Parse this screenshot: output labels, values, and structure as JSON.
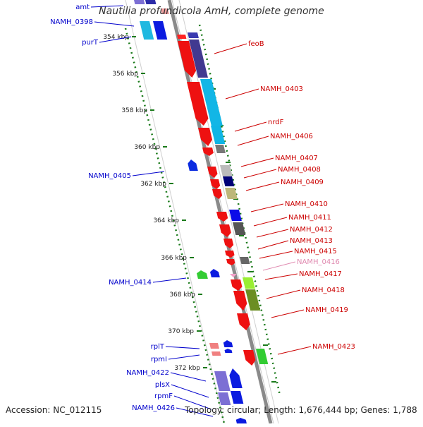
{
  "title": "Nautilia profundicola AmH, complete genome",
  "footer": {
    "accession": "Accession: NC_012115",
    "summary": "Topology: circular; Length: 1,676,444 bp; Genes: 1,788"
  },
  "colors": {
    "backbone": "#8a8a8a",
    "tick": "#1a7a1a",
    "label_plus": "#0000cc",
    "label_minus": "#cc0000",
    "label_minus_faint": "#e08ab0"
  },
  "scale_ticks": [
    "354 kbp",
    "356 kbp",
    "358 kbp",
    "360 kbp",
    "362 kbp",
    "364 kbp",
    "366 kbp",
    "368 kbp",
    "370 kbp",
    "372 kbp"
  ],
  "labels_plus": [
    "amt",
    "NAMH_0398",
    "purT",
    "NAMH_0405",
    "NAMH_0414",
    "rplT",
    "rpmI",
    "NAMH_0422",
    "plsX",
    "rpmF",
    "NAMH_0426"
  ],
  "labels_minus": [
    "feoB",
    "NAMH_0403",
    "nrdF",
    "NAMH_0406",
    "NAMH_0407",
    "NAMH_0408",
    "NAMH_0409",
    "NAMH_0410",
    "NAMH_0411",
    "NAMH_0412",
    "NAMH_0413",
    "NAMH_0415",
    "NAMH_0416",
    "NAMH_0417",
    "NAMH_0418",
    "NAMH_0419",
    "NAMH_0423"
  ]
}
